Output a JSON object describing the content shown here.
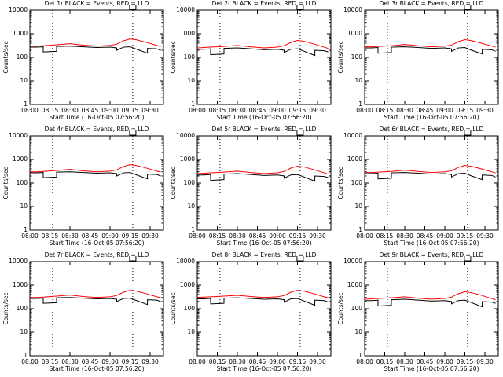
{
  "chart_data": [
    {
      "type": "line",
      "title": "Det 1r BLACK = Events, RED = LLD",
      "xlabel": "Start Time (16-Oct-05 07:56:20)",
      "ylabel": "Counts/sec",
      "log_y": true,
      "ylim": [
        1,
        10000
      ],
      "yticks": [
        1,
        10,
        100,
        1000,
        10000
      ],
      "xlim": [
        "08:00",
        "09:40"
      ],
      "xticks": [
        "08:00",
        "08:15",
        "08:30",
        "08:45",
        "09:00",
        "09:15",
        "09:30"
      ],
      "vlines": [
        "08:17",
        "09:17"
      ],
      "x": [
        "08:00",
        "08:05",
        "08:10",
        "08:10",
        "08:20",
        "08:20",
        "08:30",
        "08:40",
        "08:50",
        "09:00",
        "09:05",
        "09:05",
        "09:10",
        "09:15",
        "09:20",
        "09:28",
        "09:28",
        "09:35",
        "09:38"
      ],
      "series": [
        {
          "color": "#ff0000",
          "values": [
            300,
            300,
            310,
            310,
            340,
            340,
            380,
            330,
            300,
            320,
            360,
            360,
            500,
            600,
            550,
            420,
            420,
            320,
            290
          ]
        },
        {
          "color": "#000000",
          "values": [
            270,
            270,
            280,
            170,
            180,
            290,
            300,
            280,
            260,
            270,
            250,
            200,
            270,
            280,
            220,
            150,
            240,
            230,
            200
          ]
        }
      ]
    },
    {
      "type": "line",
      "title": "Det 2r BLACK = Events, RED = LLD",
      "xlabel": "Start Time (16-Oct-05 07:56:20)",
      "ylabel": "Counts/sec",
      "log_y": true,
      "ylim": [
        1,
        10000
      ],
      "yticks": [
        1,
        10,
        100,
        1000,
        10000
      ],
      "xlim": [
        "08:00",
        "09:40"
      ],
      "xticks": [
        "08:00",
        "08:15",
        "08:30",
        "08:45",
        "09:00",
        "09:15",
        "09:30"
      ],
      "vlines": [
        "08:17",
        "09:17"
      ],
      "x": [
        "08:00",
        "08:05",
        "08:10",
        "08:10",
        "08:20",
        "08:20",
        "08:30",
        "08:40",
        "08:50",
        "09:00",
        "09:05",
        "09:05",
        "09:10",
        "09:15",
        "09:20",
        "09:28",
        "09:28",
        "09:35",
        "09:38"
      ],
      "series": [
        {
          "color": "#ff0000",
          "values": [
            250,
            260,
            270,
            270,
            290,
            290,
            320,
            280,
            250,
            270,
            310,
            310,
            430,
            520,
            480,
            360,
            360,
            270,
            240
          ]
        },
        {
          "color": "#000000",
          "values": [
            220,
            220,
            230,
            130,
            140,
            240,
            250,
            230,
            210,
            220,
            200,
            160,
            220,
            230,
            180,
            120,
            200,
            190,
            170
          ]
        }
      ]
    },
    {
      "type": "line",
      "title": "Det 3r BLACK = Events, RED = LLD",
      "xlabel": "Start Time (16-Oct-05 07:56:20)",
      "ylabel": "Counts/sec",
      "log_y": true,
      "ylim": [
        1,
        10000
      ],
      "yticks": [
        1,
        10,
        100,
        1000,
        10000
      ],
      "xlim": [
        "08:00",
        "09:40"
      ],
      "xticks": [
        "08:00",
        "08:15",
        "08:30",
        "08:45",
        "09:00",
        "09:15",
        "09:30"
      ],
      "vlines": [
        "08:17",
        "09:17"
      ],
      "x": [
        "08:00",
        "08:05",
        "08:10",
        "08:10",
        "08:20",
        "08:20",
        "08:30",
        "08:40",
        "08:50",
        "09:00",
        "09:05",
        "09:05",
        "09:10",
        "09:15",
        "09:20",
        "09:28",
        "09:28",
        "09:35",
        "09:38"
      ],
      "series": [
        {
          "color": "#ff0000",
          "values": [
            280,
            280,
            290,
            290,
            310,
            310,
            350,
            310,
            280,
            300,
            330,
            330,
            460,
            560,
            510,
            390,
            390,
            300,
            270
          ]
        },
        {
          "color": "#000000",
          "values": [
            250,
            250,
            260,
            150,
            160,
            270,
            280,
            260,
            240,
            250,
            230,
            180,
            250,
            260,
            200,
            140,
            220,
            210,
            180
          ]
        }
      ]
    },
    {
      "type": "line",
      "title": "Det 4r BLACK = Events, RED = LLD",
      "xlabel": "Start Time (16-Oct-05 07:56:20)",
      "ylabel": "Counts/sec",
      "log_y": true,
      "ylim": [
        1,
        10000
      ],
      "yticks": [
        1,
        10,
        100,
        1000,
        10000
      ],
      "xlim": [
        "08:00",
        "09:40"
      ],
      "xticks": [
        "08:00",
        "08:15",
        "08:30",
        "08:45",
        "09:00",
        "09:15",
        "09:30"
      ],
      "vlines": [
        "08:17",
        "09:17"
      ],
      "x": [
        "08:00",
        "08:05",
        "08:10",
        "08:10",
        "08:20",
        "08:20",
        "08:30",
        "08:40",
        "08:50",
        "09:00",
        "09:05",
        "09:05",
        "09:10",
        "09:15",
        "09:20",
        "09:28",
        "09:28",
        "09:35",
        "09:38"
      ],
      "series": [
        {
          "color": "#ff0000",
          "values": [
            300,
            300,
            310,
            310,
            340,
            340,
            380,
            330,
            300,
            320,
            360,
            360,
            500,
            600,
            550,
            420,
            420,
            320,
            290
          ]
        },
        {
          "color": "#000000",
          "values": [
            270,
            270,
            280,
            170,
            180,
            290,
            300,
            280,
            260,
            270,
            250,
            200,
            270,
            280,
            220,
            150,
            240,
            230,
            200
          ]
        }
      ]
    },
    {
      "type": "line",
      "title": "Det 5r BLACK = Events, RED = LLD",
      "xlabel": "Start Time (16-Oct-05 07:56:20)",
      "ylabel": "Counts/sec",
      "log_y": true,
      "ylim": [
        1,
        10000
      ],
      "yticks": [
        1,
        10,
        100,
        1000,
        10000
      ],
      "xlim": [
        "08:00",
        "09:40"
      ],
      "xticks": [
        "08:00",
        "08:15",
        "08:30",
        "08:45",
        "09:00",
        "09:15",
        "09:30"
      ],
      "vlines": [
        "08:17",
        "09:17"
      ],
      "x": [
        "08:00",
        "08:05",
        "08:10",
        "08:10",
        "08:20",
        "08:20",
        "08:30",
        "08:40",
        "08:50",
        "09:00",
        "09:05",
        "09:05",
        "09:10",
        "09:15",
        "09:20",
        "09:28",
        "09:28",
        "09:35",
        "09:38"
      ],
      "series": [
        {
          "color": "#ff0000",
          "values": [
            250,
            260,
            270,
            270,
            290,
            290,
            320,
            280,
            250,
            270,
            310,
            310,
            430,
            520,
            480,
            360,
            360,
            270,
            240
          ]
        },
        {
          "color": "#000000",
          "values": [
            220,
            220,
            230,
            130,
            140,
            240,
            250,
            230,
            210,
            220,
            200,
            160,
            220,
            230,
            180,
            120,
            200,
            190,
            170
          ]
        }
      ]
    },
    {
      "type": "line",
      "title": "Det 6r BLACK = Events, RED = LLD",
      "xlabel": "Start Time (16-Oct-05 07:56:20)",
      "ylabel": "Counts/sec",
      "log_y": true,
      "ylim": [
        1,
        10000
      ],
      "yticks": [
        1,
        10,
        100,
        1000,
        10000
      ],
      "xlim": [
        "08:00",
        "09:40"
      ],
      "xticks": [
        "08:00",
        "08:15",
        "08:30",
        "08:45",
        "09:00",
        "09:15",
        "09:30"
      ],
      "vlines": [
        "08:17",
        "09:17"
      ],
      "x": [
        "08:00",
        "08:05",
        "08:10",
        "08:10",
        "08:20",
        "08:20",
        "08:30",
        "08:40",
        "08:50",
        "09:00",
        "09:05",
        "09:05",
        "09:10",
        "09:15",
        "09:20",
        "09:28",
        "09:28",
        "09:35",
        "09:38"
      ],
      "series": [
        {
          "color": "#ff0000",
          "values": [
            280,
            280,
            290,
            290,
            310,
            310,
            350,
            310,
            280,
            300,
            330,
            330,
            460,
            560,
            510,
            390,
            390,
            300,
            270
          ]
        },
        {
          "color": "#000000",
          "values": [
            250,
            250,
            260,
            150,
            160,
            270,
            280,
            260,
            240,
            250,
            230,
            180,
            250,
            260,
            200,
            140,
            220,
            210,
            180
          ]
        }
      ]
    },
    {
      "type": "line",
      "title": "Det 7r BLACK = Events, RED = LLD",
      "xlabel": "Start Time (16-Oct-05 07:56:20)",
      "ylabel": "Counts/sec",
      "log_y": true,
      "ylim": [
        1,
        10000
      ],
      "yticks": [
        1,
        10,
        100,
        1000,
        10000
      ],
      "xlim": [
        "08:00",
        "09:40"
      ],
      "xticks": [
        "08:00",
        "08:15",
        "08:30",
        "08:45",
        "09:00",
        "09:15",
        "09:30"
      ],
      "vlines": [
        "08:17",
        "09:17"
      ],
      "x": [
        "08:00",
        "08:05",
        "08:10",
        "08:10",
        "08:20",
        "08:20",
        "08:30",
        "08:40",
        "08:50",
        "09:00",
        "09:05",
        "09:05",
        "09:10",
        "09:15",
        "09:20",
        "09:28",
        "09:28",
        "09:35",
        "09:38"
      ],
      "series": [
        {
          "color": "#ff0000",
          "values": [
            300,
            300,
            310,
            310,
            340,
            340,
            380,
            330,
            300,
            320,
            360,
            360,
            500,
            600,
            550,
            420,
            420,
            320,
            290
          ]
        },
        {
          "color": "#000000",
          "values": [
            270,
            270,
            280,
            170,
            180,
            290,
            300,
            280,
            260,
            270,
            250,
            200,
            270,
            280,
            220,
            150,
            240,
            230,
            200
          ]
        }
      ]
    },
    {
      "type": "line",
      "title": "Det 8r BLACK = Events, RED = LLD",
      "xlabel": "Start Time (16-Oct-05 07:56:20)",
      "ylabel": "Counts/sec",
      "log_y": true,
      "ylim": [
        1,
        10000
      ],
      "yticks": [
        1,
        10,
        100,
        1000,
        10000
      ],
      "xlim": [
        "08:00",
        "09:40"
      ],
      "xticks": [
        "08:00",
        "08:15",
        "08:30",
        "08:45",
        "09:00",
        "09:15",
        "09:30"
      ],
      "vlines": [
        "08:17",
        "09:17"
      ],
      "x": [
        "08:00",
        "08:05",
        "08:10",
        "08:10",
        "08:20",
        "08:20",
        "08:30",
        "08:40",
        "08:50",
        "09:00",
        "09:05",
        "09:05",
        "09:10",
        "09:15",
        "09:20",
        "09:28",
        "09:28",
        "09:35",
        "09:38"
      ],
      "series": [
        {
          "color": "#ff0000",
          "values": [
            300,
            310,
            320,
            320,
            340,
            340,
            370,
            330,
            300,
            320,
            360,
            360,
            500,
            600,
            550,
            420,
            420,
            320,
            290
          ]
        },
        {
          "color": "#000000",
          "values": [
            260,
            260,
            270,
            160,
            170,
            280,
            290,
            270,
            250,
            260,
            240,
            190,
            260,
            270,
            210,
            140,
            230,
            220,
            190
          ]
        }
      ]
    },
    {
      "type": "line",
      "title": "Det 9r BLACK = Events, RED = LLD",
      "xlabel": "Start Time (16-Oct-05 07:56:20)",
      "ylabel": "Counts/sec",
      "log_y": true,
      "ylim": [
        1,
        10000
      ],
      "yticks": [
        1,
        10,
        100,
        1000,
        10000
      ],
      "xlim": [
        "08:00",
        "09:40"
      ],
      "xticks": [
        "08:00",
        "08:15",
        "08:30",
        "08:45",
        "09:00",
        "09:15",
        "09:30"
      ],
      "vlines": [
        "08:17",
        "09:17"
      ],
      "x": [
        "08:00",
        "08:05",
        "08:10",
        "08:10",
        "08:20",
        "08:20",
        "08:30",
        "08:40",
        "08:50",
        "09:00",
        "09:05",
        "09:05",
        "09:10",
        "09:15",
        "09:20",
        "09:28",
        "09:28",
        "09:35",
        "09:38"
      ],
      "series": [
        {
          "color": "#ff0000",
          "values": [
            250,
            260,
            270,
            270,
            290,
            290,
            320,
            280,
            250,
            270,
            310,
            310,
            430,
            520,
            480,
            360,
            360,
            270,
            240
          ]
        },
        {
          "color": "#000000",
          "values": [
            220,
            220,
            230,
            130,
            140,
            240,
            250,
            230,
            210,
            220,
            200,
            160,
            220,
            230,
            180,
            120,
            200,
            190,
            170
          ]
        }
      ]
    }
  ]
}
